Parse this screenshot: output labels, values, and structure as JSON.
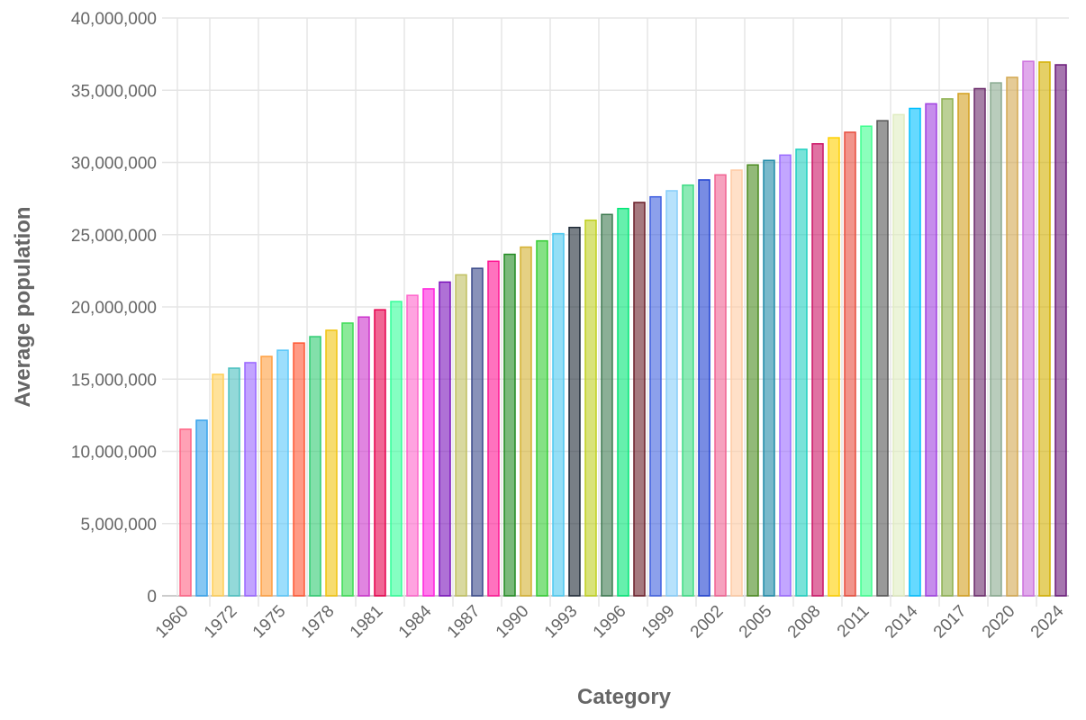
{
  "chart_data": {
    "type": "bar",
    "title": "",
    "xlabel": "Category",
    "ylabel": "Average population",
    "ylim": [
      0,
      40000000
    ],
    "yticks": [
      "0",
      "5,000,000",
      "10,000,000",
      "15,000,000",
      "20,000,000",
      "25,000,000",
      "30,000,000",
      "35,000,000",
      "40,000,000"
    ],
    "grid": true,
    "legend": "none",
    "categories": [
      "1960",
      "1970",
      "1971",
      "1972",
      "1973",
      "1974",
      "1975",
      "1976",
      "1977",
      "1978",
      "1979",
      "1980",
      "1981",
      "1982",
      "1983",
      "1984",
      "1985",
      "1986",
      "1987",
      "1988",
      "1989",
      "1990",
      "1991",
      "1992",
      "1993",
      "1994",
      "1995",
      "1996",
      "1997",
      "1998",
      "1999",
      "2000",
      "2001",
      "2002",
      "2003",
      "2004",
      "2005",
      "2006",
      "2007",
      "2008",
      "2009",
      "2010",
      "2011",
      "2012",
      "2013",
      "2014",
      "2015",
      "2016",
      "2017",
      "2018",
      "2019",
      "2020",
      "2021",
      "2022",
      "2024"
    ],
    "shown_tick_labels": [
      "1960",
      "1972",
      "1975",
      "1978",
      "1981",
      "1984",
      "1987",
      "1990",
      "1993",
      "1996",
      "1999",
      "2002",
      "2005",
      "2008",
      "2011",
      "2014",
      "2017",
      "2020",
      "2024"
    ],
    "values": [
      11530000,
      12150000,
      15330000,
      15760000,
      16140000,
      16570000,
      17000000,
      17500000,
      17940000,
      18380000,
      18880000,
      19300000,
      19800000,
      20370000,
      20800000,
      21250000,
      21720000,
      22220000,
      22670000,
      23160000,
      23640000,
      24140000,
      24570000,
      25070000,
      25500000,
      26000000,
      26400000,
      26810000,
      27230000,
      27620000,
      28040000,
      28430000,
      28790000,
      29140000,
      29470000,
      29830000,
      30140000,
      30510000,
      30910000,
      31290000,
      31710000,
      32090000,
      32510000,
      32890000,
      33310000,
      33740000,
      34060000,
      34400000,
      34770000,
      35110000,
      35510000,
      35890000,
      37000000,
      36950000,
      36760000
    ],
    "colors": [
      "#ff6384",
      "#36a2eb",
      "#ffce56",
      "#4bc0c0",
      "#9966ff",
      "#ff9f40",
      "#5ac8fa",
      "#ff5733",
      "#2ecc71",
      "#f1c40f",
      "#3ddc55",
      "#cc33cc",
      "#e6004c",
      "#33ff99",
      "#ff66cc",
      "#ff22dd",
      "#7a12bb",
      "#c0c060",
      "#3b4a8a",
      "#ff1493",
      "#228b22",
      "#d4b030",
      "#32cd32",
      "#4cc9f0",
      "#1e2a36",
      "#bfd020",
      "#3d7a50",
      "#00e676",
      "#6b1f2a",
      "#4060e0",
      "#87cefa",
      "#3ddc84",
      "#1e40d0",
      "#f06292",
      "#ffcba4",
      "#4a8a1e",
      "#1f8aa8",
      "#9b6bff",
      "#20d0c0",
      "#cc1466",
      "#ffd000",
      "#e84c3d",
      "#40ff90",
      "#555555",
      "#e0ecc0",
      "#00bfff",
      "#a040e0",
      "#8db050",
      "#d4a020",
      "#6a2a6a",
      "#8aaa90",
      "#d4a850",
      "#cc70dd",
      "#d4b000",
      "#6a1a7a"
    ]
  }
}
